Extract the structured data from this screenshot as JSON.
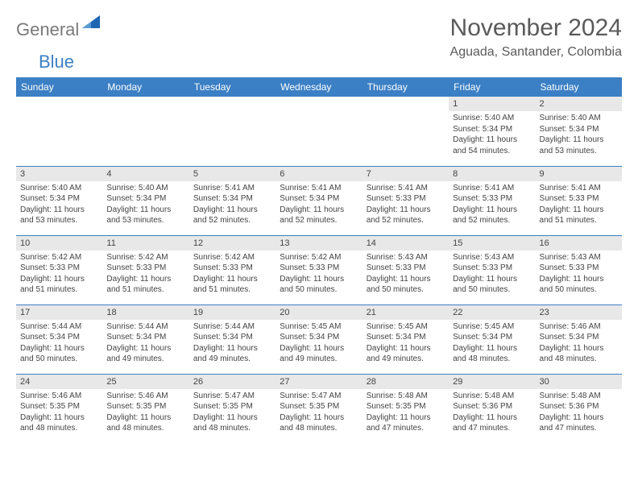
{
  "logo": {
    "text_gray": "General",
    "text_blue": "Blue",
    "tri_color": "#1d66b3"
  },
  "header": {
    "month_title": "November 2024",
    "location": "Aguada, Santander, Colombia"
  },
  "colors": {
    "header_bg": "#3b7fc4",
    "header_text": "#ffffff",
    "daynum_bg": "#e8e8e8",
    "border": "#3b7fc4",
    "body_text": "#444444"
  },
  "day_headers": [
    "Sunday",
    "Monday",
    "Tuesday",
    "Wednesday",
    "Thursday",
    "Friday",
    "Saturday"
  ],
  "weeks": [
    [
      {
        "n": "",
        "sunrise": "",
        "sunset": "",
        "daylight": ""
      },
      {
        "n": "",
        "sunrise": "",
        "sunset": "",
        "daylight": ""
      },
      {
        "n": "",
        "sunrise": "",
        "sunset": "",
        "daylight": ""
      },
      {
        "n": "",
        "sunrise": "",
        "sunset": "",
        "daylight": ""
      },
      {
        "n": "",
        "sunrise": "",
        "sunset": "",
        "daylight": ""
      },
      {
        "n": "1",
        "sunrise": "Sunrise: 5:40 AM",
        "sunset": "Sunset: 5:34 PM",
        "daylight": "Daylight: 11 hours and 54 minutes."
      },
      {
        "n": "2",
        "sunrise": "Sunrise: 5:40 AM",
        "sunset": "Sunset: 5:34 PM",
        "daylight": "Daylight: 11 hours and 53 minutes."
      }
    ],
    [
      {
        "n": "3",
        "sunrise": "Sunrise: 5:40 AM",
        "sunset": "Sunset: 5:34 PM",
        "daylight": "Daylight: 11 hours and 53 minutes."
      },
      {
        "n": "4",
        "sunrise": "Sunrise: 5:40 AM",
        "sunset": "Sunset: 5:34 PM",
        "daylight": "Daylight: 11 hours and 53 minutes."
      },
      {
        "n": "5",
        "sunrise": "Sunrise: 5:41 AM",
        "sunset": "Sunset: 5:34 PM",
        "daylight": "Daylight: 11 hours and 52 minutes."
      },
      {
        "n": "6",
        "sunrise": "Sunrise: 5:41 AM",
        "sunset": "Sunset: 5:34 PM",
        "daylight": "Daylight: 11 hours and 52 minutes."
      },
      {
        "n": "7",
        "sunrise": "Sunrise: 5:41 AM",
        "sunset": "Sunset: 5:33 PM",
        "daylight": "Daylight: 11 hours and 52 minutes."
      },
      {
        "n": "8",
        "sunrise": "Sunrise: 5:41 AM",
        "sunset": "Sunset: 5:33 PM",
        "daylight": "Daylight: 11 hours and 52 minutes."
      },
      {
        "n": "9",
        "sunrise": "Sunrise: 5:41 AM",
        "sunset": "Sunset: 5:33 PM",
        "daylight": "Daylight: 11 hours and 51 minutes."
      }
    ],
    [
      {
        "n": "10",
        "sunrise": "Sunrise: 5:42 AM",
        "sunset": "Sunset: 5:33 PM",
        "daylight": "Daylight: 11 hours and 51 minutes."
      },
      {
        "n": "11",
        "sunrise": "Sunrise: 5:42 AM",
        "sunset": "Sunset: 5:33 PM",
        "daylight": "Daylight: 11 hours and 51 minutes."
      },
      {
        "n": "12",
        "sunrise": "Sunrise: 5:42 AM",
        "sunset": "Sunset: 5:33 PM",
        "daylight": "Daylight: 11 hours and 51 minutes."
      },
      {
        "n": "13",
        "sunrise": "Sunrise: 5:42 AM",
        "sunset": "Sunset: 5:33 PM",
        "daylight": "Daylight: 11 hours and 50 minutes."
      },
      {
        "n": "14",
        "sunrise": "Sunrise: 5:43 AM",
        "sunset": "Sunset: 5:33 PM",
        "daylight": "Daylight: 11 hours and 50 minutes."
      },
      {
        "n": "15",
        "sunrise": "Sunrise: 5:43 AM",
        "sunset": "Sunset: 5:33 PM",
        "daylight": "Daylight: 11 hours and 50 minutes."
      },
      {
        "n": "16",
        "sunrise": "Sunrise: 5:43 AM",
        "sunset": "Sunset: 5:33 PM",
        "daylight": "Daylight: 11 hours and 50 minutes."
      }
    ],
    [
      {
        "n": "17",
        "sunrise": "Sunrise: 5:44 AM",
        "sunset": "Sunset: 5:34 PM",
        "daylight": "Daylight: 11 hours and 50 minutes."
      },
      {
        "n": "18",
        "sunrise": "Sunrise: 5:44 AM",
        "sunset": "Sunset: 5:34 PM",
        "daylight": "Daylight: 11 hours and 49 minutes."
      },
      {
        "n": "19",
        "sunrise": "Sunrise: 5:44 AM",
        "sunset": "Sunset: 5:34 PM",
        "daylight": "Daylight: 11 hours and 49 minutes."
      },
      {
        "n": "20",
        "sunrise": "Sunrise: 5:45 AM",
        "sunset": "Sunset: 5:34 PM",
        "daylight": "Daylight: 11 hours and 49 minutes."
      },
      {
        "n": "21",
        "sunrise": "Sunrise: 5:45 AM",
        "sunset": "Sunset: 5:34 PM",
        "daylight": "Daylight: 11 hours and 49 minutes."
      },
      {
        "n": "22",
        "sunrise": "Sunrise: 5:45 AM",
        "sunset": "Sunset: 5:34 PM",
        "daylight": "Daylight: 11 hours and 48 minutes."
      },
      {
        "n": "23",
        "sunrise": "Sunrise: 5:46 AM",
        "sunset": "Sunset: 5:34 PM",
        "daylight": "Daylight: 11 hours and 48 minutes."
      }
    ],
    [
      {
        "n": "24",
        "sunrise": "Sunrise: 5:46 AM",
        "sunset": "Sunset: 5:35 PM",
        "daylight": "Daylight: 11 hours and 48 minutes."
      },
      {
        "n": "25",
        "sunrise": "Sunrise: 5:46 AM",
        "sunset": "Sunset: 5:35 PM",
        "daylight": "Daylight: 11 hours and 48 minutes."
      },
      {
        "n": "26",
        "sunrise": "Sunrise: 5:47 AM",
        "sunset": "Sunset: 5:35 PM",
        "daylight": "Daylight: 11 hours and 48 minutes."
      },
      {
        "n": "27",
        "sunrise": "Sunrise: 5:47 AM",
        "sunset": "Sunset: 5:35 PM",
        "daylight": "Daylight: 11 hours and 48 minutes."
      },
      {
        "n": "28",
        "sunrise": "Sunrise: 5:48 AM",
        "sunset": "Sunset: 5:35 PM",
        "daylight": "Daylight: 11 hours and 47 minutes."
      },
      {
        "n": "29",
        "sunrise": "Sunrise: 5:48 AM",
        "sunset": "Sunset: 5:36 PM",
        "daylight": "Daylight: 11 hours and 47 minutes."
      },
      {
        "n": "30",
        "sunrise": "Sunrise: 5:48 AM",
        "sunset": "Sunset: 5:36 PM",
        "daylight": "Daylight: 11 hours and 47 minutes."
      }
    ]
  ]
}
